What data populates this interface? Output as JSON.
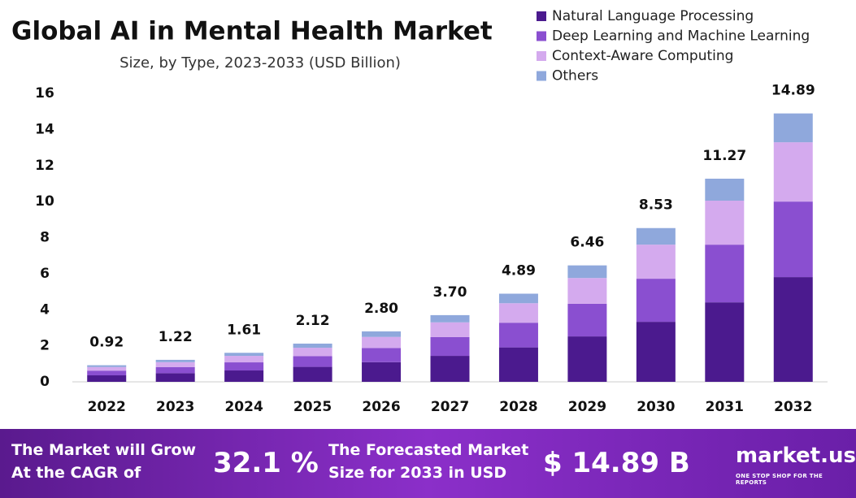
{
  "chart_data": {
    "type": "stacked-bar",
    "title": "Global AI in Mental Health Market",
    "subtitle": "Size, by Type, 2023-2033 (USD Billion)",
    "categories": [
      "2022",
      "2023",
      "2024",
      "2025",
      "2026",
      "2027",
      "2028",
      "2029",
      "2030",
      "2031",
      "2032"
    ],
    "series": [
      {
        "name": "Natural Language Processing",
        "color": "#4b1a8e",
        "values": [
          0.36,
          0.48,
          0.63,
          0.83,
          1.09,
          1.44,
          1.91,
          2.52,
          3.33,
          4.41,
          5.81
        ]
      },
      {
        "name": "Deep Learning and Machine Learning",
        "color": "#8a4fd0",
        "values": [
          0.26,
          0.34,
          0.45,
          0.59,
          0.78,
          1.04,
          1.37,
          1.81,
          2.39,
          3.2,
          4.19
        ]
      },
      {
        "name": "Context-Aware Computing",
        "color": "#d4aaee",
        "values": [
          0.2,
          0.27,
          0.36,
          0.47,
          0.62,
          0.82,
          1.08,
          1.43,
          1.89,
          2.44,
          3.29
        ]
      },
      {
        "name": "Others",
        "color": "#8fa8dc",
        "values": [
          0.1,
          0.13,
          0.17,
          0.23,
          0.31,
          0.4,
          0.53,
          0.7,
          0.92,
          1.22,
          1.6
        ]
      }
    ],
    "totals": [
      0.92,
      1.22,
      1.61,
      2.12,
      2.8,
      3.7,
      4.89,
      6.46,
      8.53,
      11.27,
      14.89
    ],
    "total_labels": [
      "0.92",
      "1.22",
      "1.61",
      "2.12",
      "2.80",
      "3.70",
      "4.89",
      "6.46",
      "8.53",
      "11.27",
      "14.89"
    ],
    "ylim": [
      0,
      16
    ],
    "yticks": [
      0,
      2,
      4,
      6,
      8,
      10,
      12,
      14,
      16
    ],
    "grid": false,
    "legend": "top-right"
  },
  "banner": {
    "cagr_text": "The Market will Grow At the CAGR of",
    "cagr_value": "32.1 %",
    "forecast_text": "The Forecasted Market Size for 2033 in USD",
    "forecast_value": "$ 14.89 B",
    "brand": "market.us",
    "tagline": "ONE STOP SHOP FOR THE REPORTS"
  }
}
